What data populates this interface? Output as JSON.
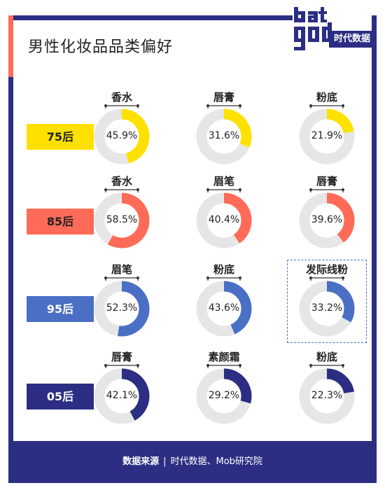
{
  "title": "男性化妆品品类偏好",
  "logo": {
    "text": "时代数据"
  },
  "footer": {
    "label": "数据来源",
    "separator": "|",
    "source": "时代数据、Mob研究院"
  },
  "colors": {
    "track": "#e6e6e6",
    "frame": "#2b2e83",
    "accent": "#ff6b57"
  },
  "chart_data": {
    "type": "pie",
    "unit": "%",
    "rows": [
      {
        "label": "75后",
        "color": "#ffe100",
        "text_color": "#222222",
        "items": [
          {
            "name": "香水",
            "value": 45.9
          },
          {
            "name": "唇膏",
            "value": 31.6
          },
          {
            "name": "粉底",
            "value": 21.9
          }
        ]
      },
      {
        "label": "85后",
        "color": "#ff6b57",
        "text_color": "#222222",
        "items": [
          {
            "name": "香水",
            "value": 58.5
          },
          {
            "name": "眉笔",
            "value": 40.4
          },
          {
            "name": "唇膏",
            "value": 39.6
          }
        ]
      },
      {
        "label": "95后",
        "color": "#4a6fc4",
        "text_color": "#ffffff",
        "items": [
          {
            "name": "眉笔",
            "value": 52.3
          },
          {
            "name": "粉底",
            "value": 43.6
          },
          {
            "name": "发际线粉",
            "value": 33.2
          }
        ]
      },
      {
        "label": "05后",
        "color": "#2b2e83",
        "text_color": "#ffffff",
        "items": [
          {
            "name": "唇膏",
            "value": 42.1
          },
          {
            "name": "素颜霜",
            "value": 29.2
          },
          {
            "name": "粉底",
            "value": 22.3
          }
        ]
      }
    ]
  }
}
